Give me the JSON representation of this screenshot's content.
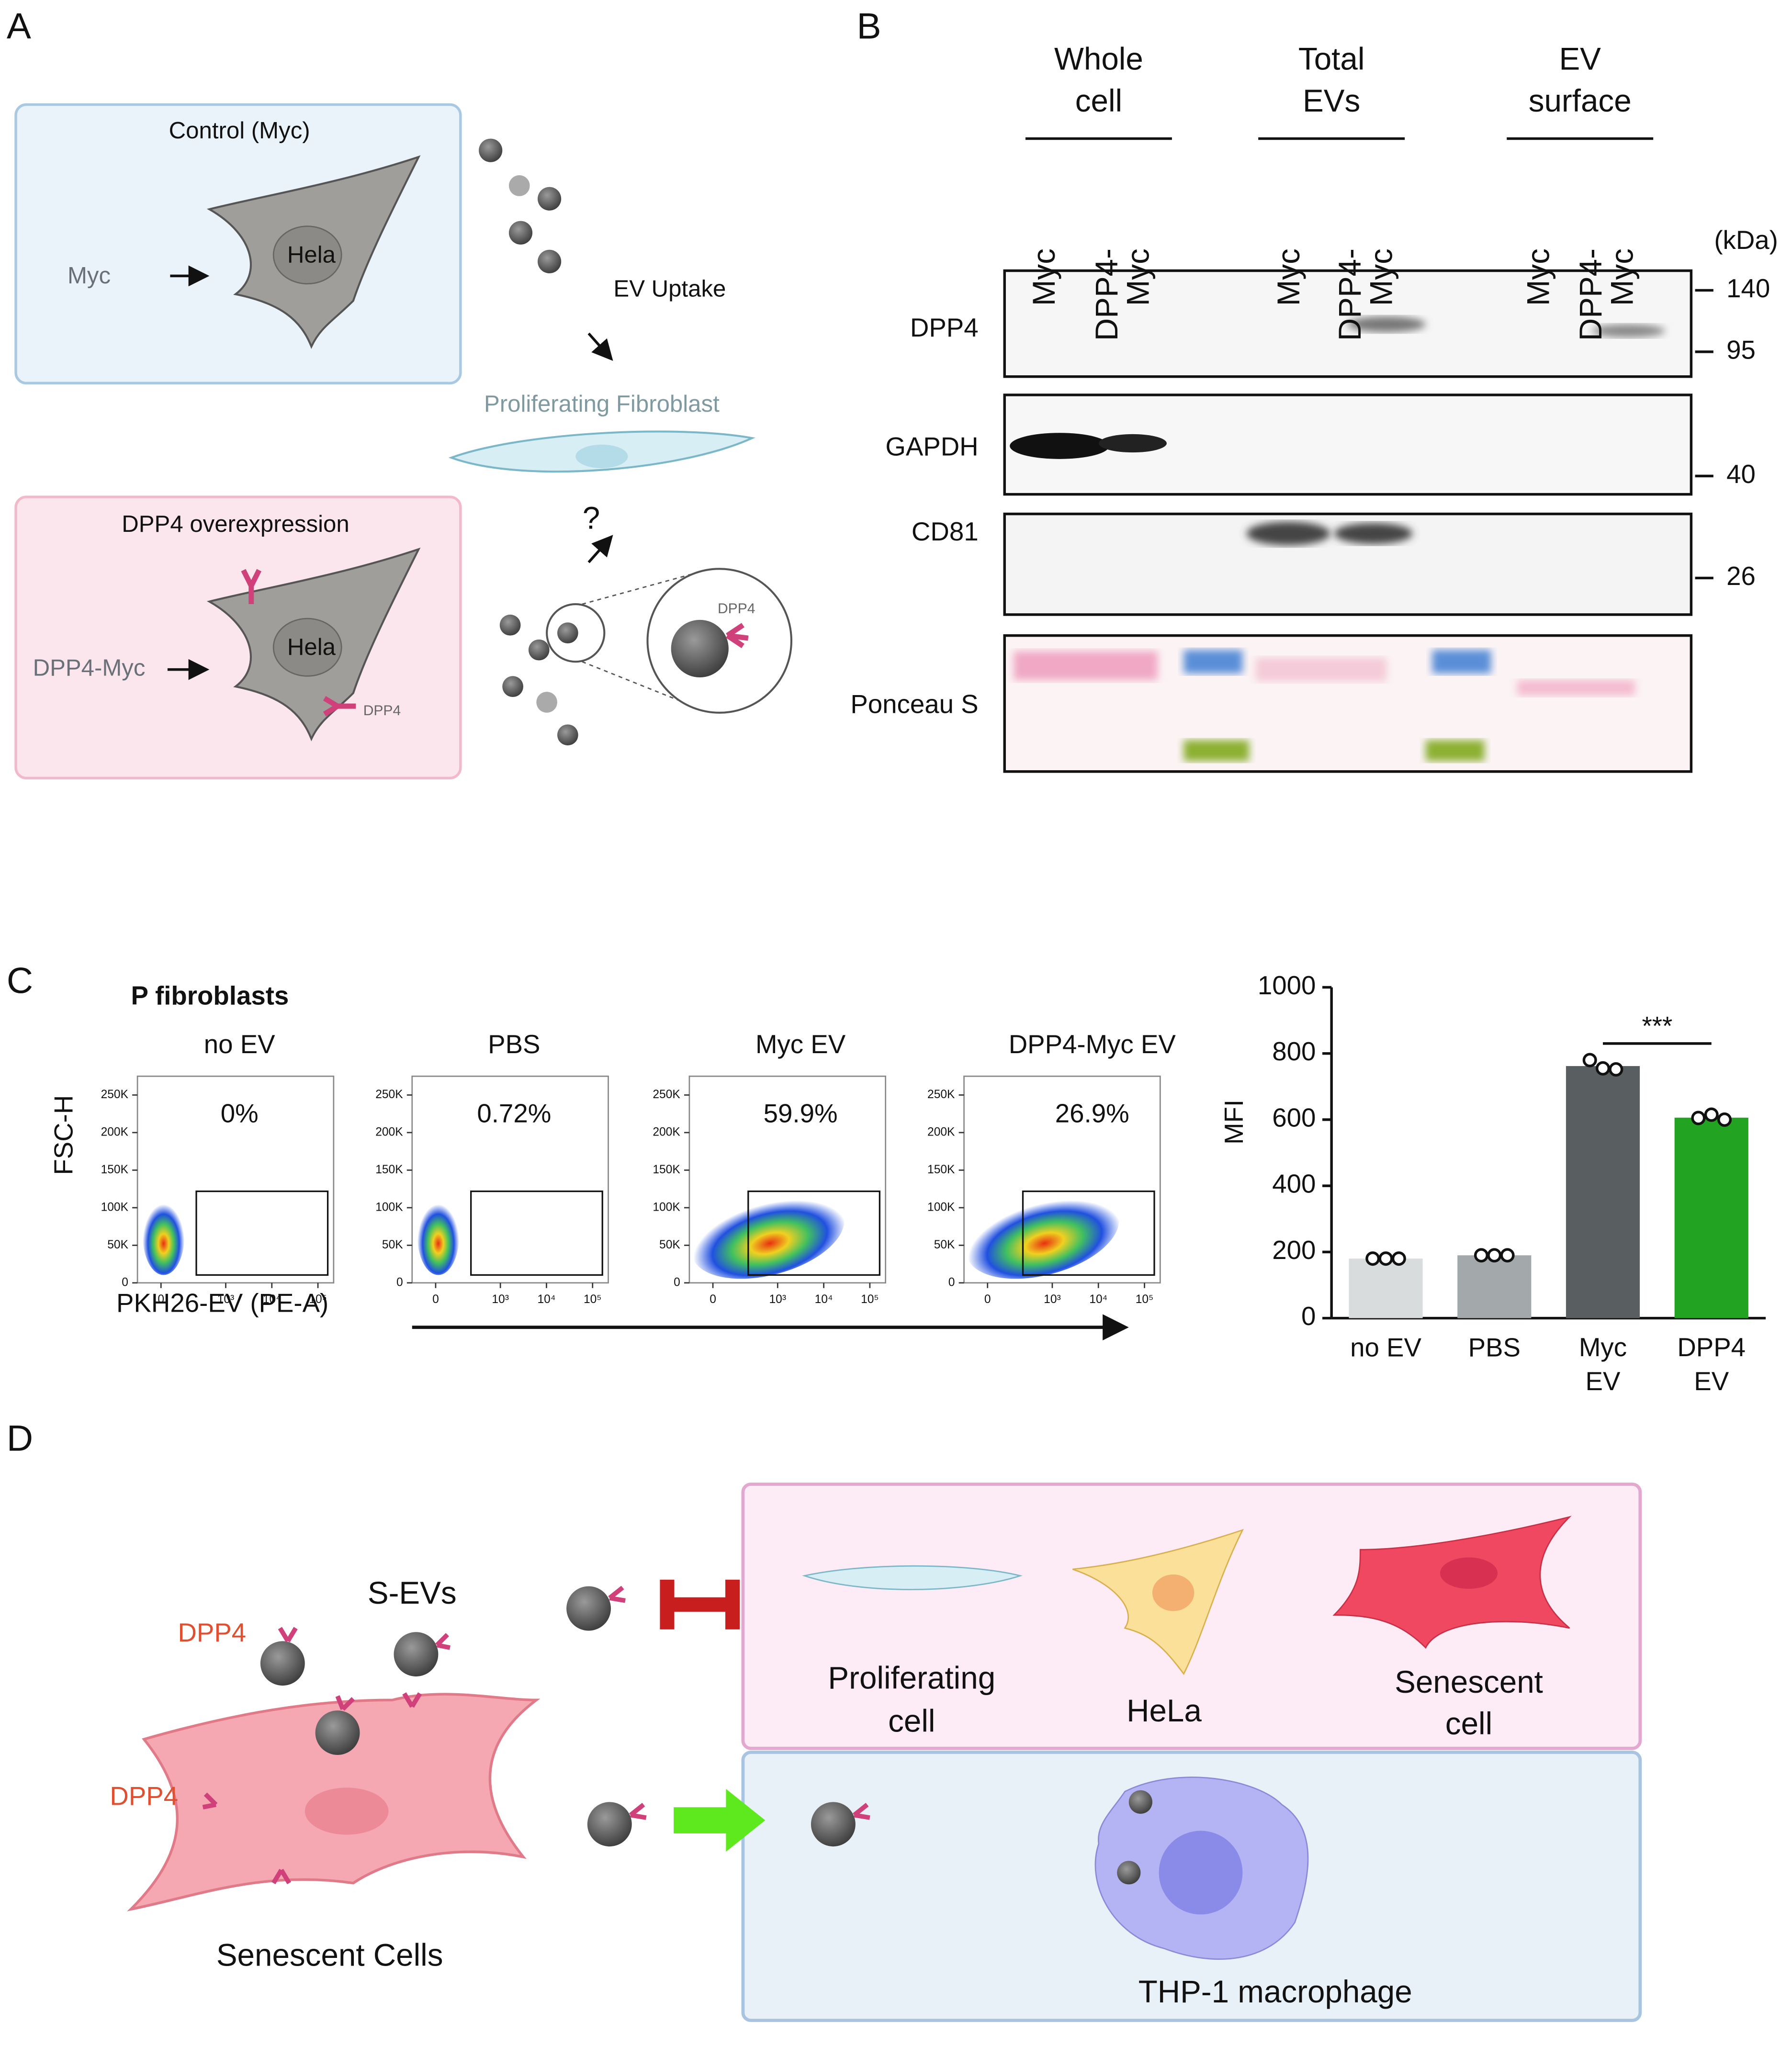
{
  "panel_labels": [
    "A",
    "B",
    "C",
    "D"
  ],
  "panel_a": {
    "control_title": "Control (Myc)",
    "control_input": "Myc",
    "cell_label": "Hela",
    "dpp4_title": "DPP4 overexpression",
    "dpp4_input": "DPP4-Myc",
    "dpp4_cell_label": "Hela",
    "dpp4_marker": "DPP4",
    "ev_uptake": "EV Uptake",
    "fibroblast": "Proliferating Fibroblast",
    "question": "?",
    "zoom_label": "DPP4"
  },
  "panel_b": {
    "groups": [
      [
        "Whole",
        "cell"
      ],
      [
        "Total",
        "EVs"
      ],
      [
        "EV",
        "surface"
      ]
    ],
    "lanes": [
      [
        "Myc"
      ],
      [
        "DPP4-",
        "Myc"
      ],
      [
        "Myc"
      ],
      [
        "DPP4-",
        "Myc"
      ],
      [
        "Myc"
      ],
      [
        "DPP4-",
        "Myc"
      ]
    ],
    "unit": "(kDa)",
    "rows": [
      "DPP4",
      "GAPDH",
      "CD81",
      "Ponceau S"
    ],
    "markers": [
      140,
      95,
      40,
      26
    ]
  },
  "panel_c": {
    "title": "P fibroblasts",
    "y_label": "FSC-H",
    "x_label": "PKH26-EV (PE-A)",
    "ylim": [
      0,
      275000
    ],
    "yticks": [
      {
        "value": 250000,
        "label": "250K"
      },
      {
        "value": 200000,
        "label": "200K"
      },
      {
        "value": 150000,
        "label": "150K"
      },
      {
        "value": 100000,
        "label": "100K"
      },
      {
        "value": 50000,
        "label": "50K"
      },
      0
    ],
    "xticks": [
      0,
      {
        "value": 1000,
        "label": "10³"
      },
      {
        "value": 10000,
        "label": "10⁴"
      },
      {
        "value": 100000,
        "label": "10⁵"
      }
    ],
    "panels": [
      {
        "title": "no EV",
        "percent": "0%"
      },
      {
        "title": "PBS",
        "percent": "0.72%"
      },
      {
        "title": "Myc EV",
        "percent": "59.9%"
      },
      {
        "title": "DPP4-Myc EV",
        "percent": "26.9%"
      }
    ]
  },
  "chart_data": {
    "type": "bar",
    "y_label": "MFI",
    "categories": [
      "no EV",
      "PBS",
      "Myc EV",
      "DPP4 EV"
    ],
    "values": [
      180,
      190,
      762,
      606
    ],
    "points": [
      [
        180,
        180,
        180
      ],
      [
        190,
        190,
        190
      ],
      [
        780,
        755,
        752
      ],
      [
        605,
        615,
        600
      ]
    ],
    "colors": [
      "#d9dcdc",
      "#a3a9ab",
      "#595f60",
      "#22a321"
    ],
    "ylim": [
      0,
      1000
    ],
    "yticks": [
      0,
      200,
      400,
      600,
      800,
      1000
    ],
    "annotation": "***"
  },
  "panel_d": {
    "s_evs": "S-EVs",
    "dpp4_ev": "DPP4",
    "dpp4_cell": "DPP4",
    "senescent_cells": "Senescent Cells",
    "proliferating": [
      "Proliferating",
      "cell"
    ],
    "hela": "HeLa",
    "senescent": [
      "Senescent",
      "cell"
    ],
    "macrophage": "THP-1 macrophage"
  }
}
